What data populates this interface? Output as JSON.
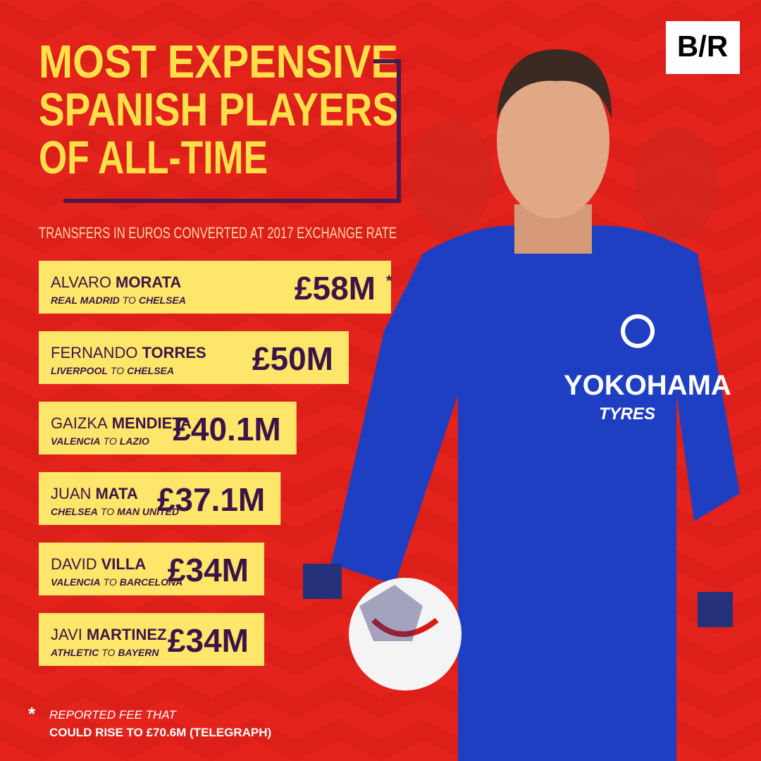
{
  "chart_data": {
    "type": "bar",
    "logo": "B/R",
    "title_lines": [
      "MOST EXPENSIVE",
      "SPANISH PLAYERS",
      "OF ALL-TIME"
    ],
    "subtitle": "TRANSFERS IN EUROS CONVERTED AT 2017 EXCHANGE RATE",
    "first_names": [
      "ALVARO",
      "FERNANDO",
      "GAIZKA",
      "JUAN",
      "DAVID",
      "JAVI"
    ],
    "last_names": [
      "MORATA",
      "TORRES",
      "MENDIETA",
      "MATA",
      "VILLA",
      "MARTINEZ"
    ],
    "from": [
      "REAL MADRID",
      "LIVERPOOL",
      "VALENCIA",
      "CHELSEA",
      "VALENCIA",
      "ATHLETIC"
    ],
    "connector": "TO",
    "to": [
      "CHELSEA",
      "CHELSEA",
      "LAZIO",
      "MAN UNITED",
      "BARCELONA",
      "BAYERN"
    ],
    "values": [
      58,
      50,
      40.1,
      37.1,
      34,
      34
    ],
    "value_labels": [
      "£58M",
      "£50M",
      "£40.1M",
      "£37.1M",
      "£34M",
      "£34M"
    ],
    "color": "#fde66a",
    "footnote": {
      "marker": "*",
      "lines": [
        "REPORTED FEE THAT",
        "COULD RISE TO £70.6M (TELEGRAPH)"
      ]
    }
  }
}
